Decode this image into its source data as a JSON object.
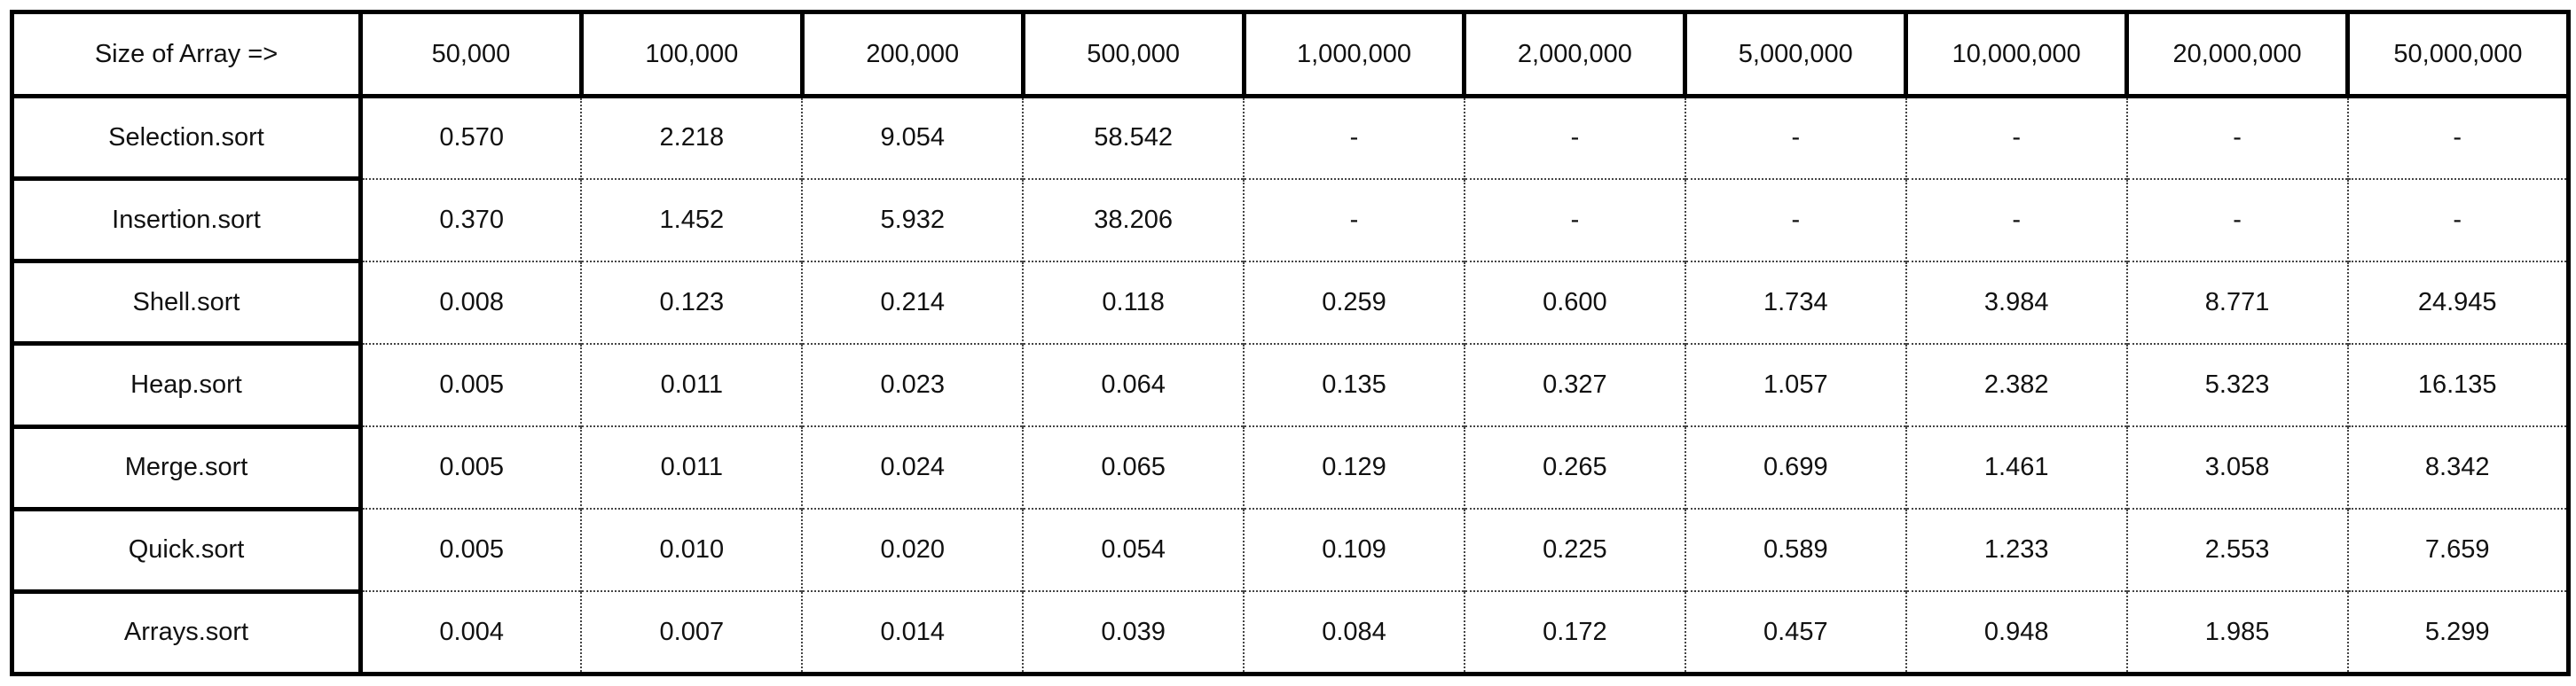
{
  "table": {
    "corner_label": "Size of Array =>",
    "sizes": [
      "50,000",
      "100,000",
      "200,000",
      "500,000",
      "1,000,000",
      "2,000,000",
      "5,000,000",
      "10,000,000",
      "20,000,000",
      "50,000,000"
    ],
    "rows": [
      {
        "name": "Selection.sort",
        "values": [
          "0.570",
          "2.218",
          "9.054",
          "58.542",
          "-",
          "-",
          "-",
          "-",
          "-",
          "-"
        ]
      },
      {
        "name": "Insertion.sort",
        "values": [
          "0.370",
          "1.452",
          "5.932",
          "38.206",
          "-",
          "-",
          "-",
          "-",
          "-",
          "-"
        ]
      },
      {
        "name": "Shell.sort",
        "values": [
          "0.008",
          "0.123",
          "0.214",
          "0.118",
          "0.259",
          "0.600",
          "1.734",
          "3.984",
          "8.771",
          "24.945"
        ]
      },
      {
        "name": "Heap.sort",
        "values": [
          "0.005",
          "0.011",
          "0.023",
          "0.064",
          "0.135",
          "0.327",
          "1.057",
          "2.382",
          "5.323",
          "16.135"
        ]
      },
      {
        "name": "Merge.sort",
        "values": [
          "0.005",
          "0.011",
          "0.024",
          "0.065",
          "0.129",
          "0.265",
          "0.699",
          "1.461",
          "3.058",
          "8.342"
        ]
      },
      {
        "name": "Quick.sort",
        "values": [
          "0.005",
          "0.010",
          "0.020",
          "0.054",
          "0.109",
          "0.225",
          "0.589",
          "1.233",
          "2.553",
          "7.659"
        ]
      },
      {
        "name": "Arrays.sort",
        "values": [
          "0.004",
          "0.007",
          "0.014",
          "0.039",
          "0.084",
          "0.172",
          "0.457",
          "0.948",
          "1.985",
          "5.299"
        ]
      }
    ]
  }
}
